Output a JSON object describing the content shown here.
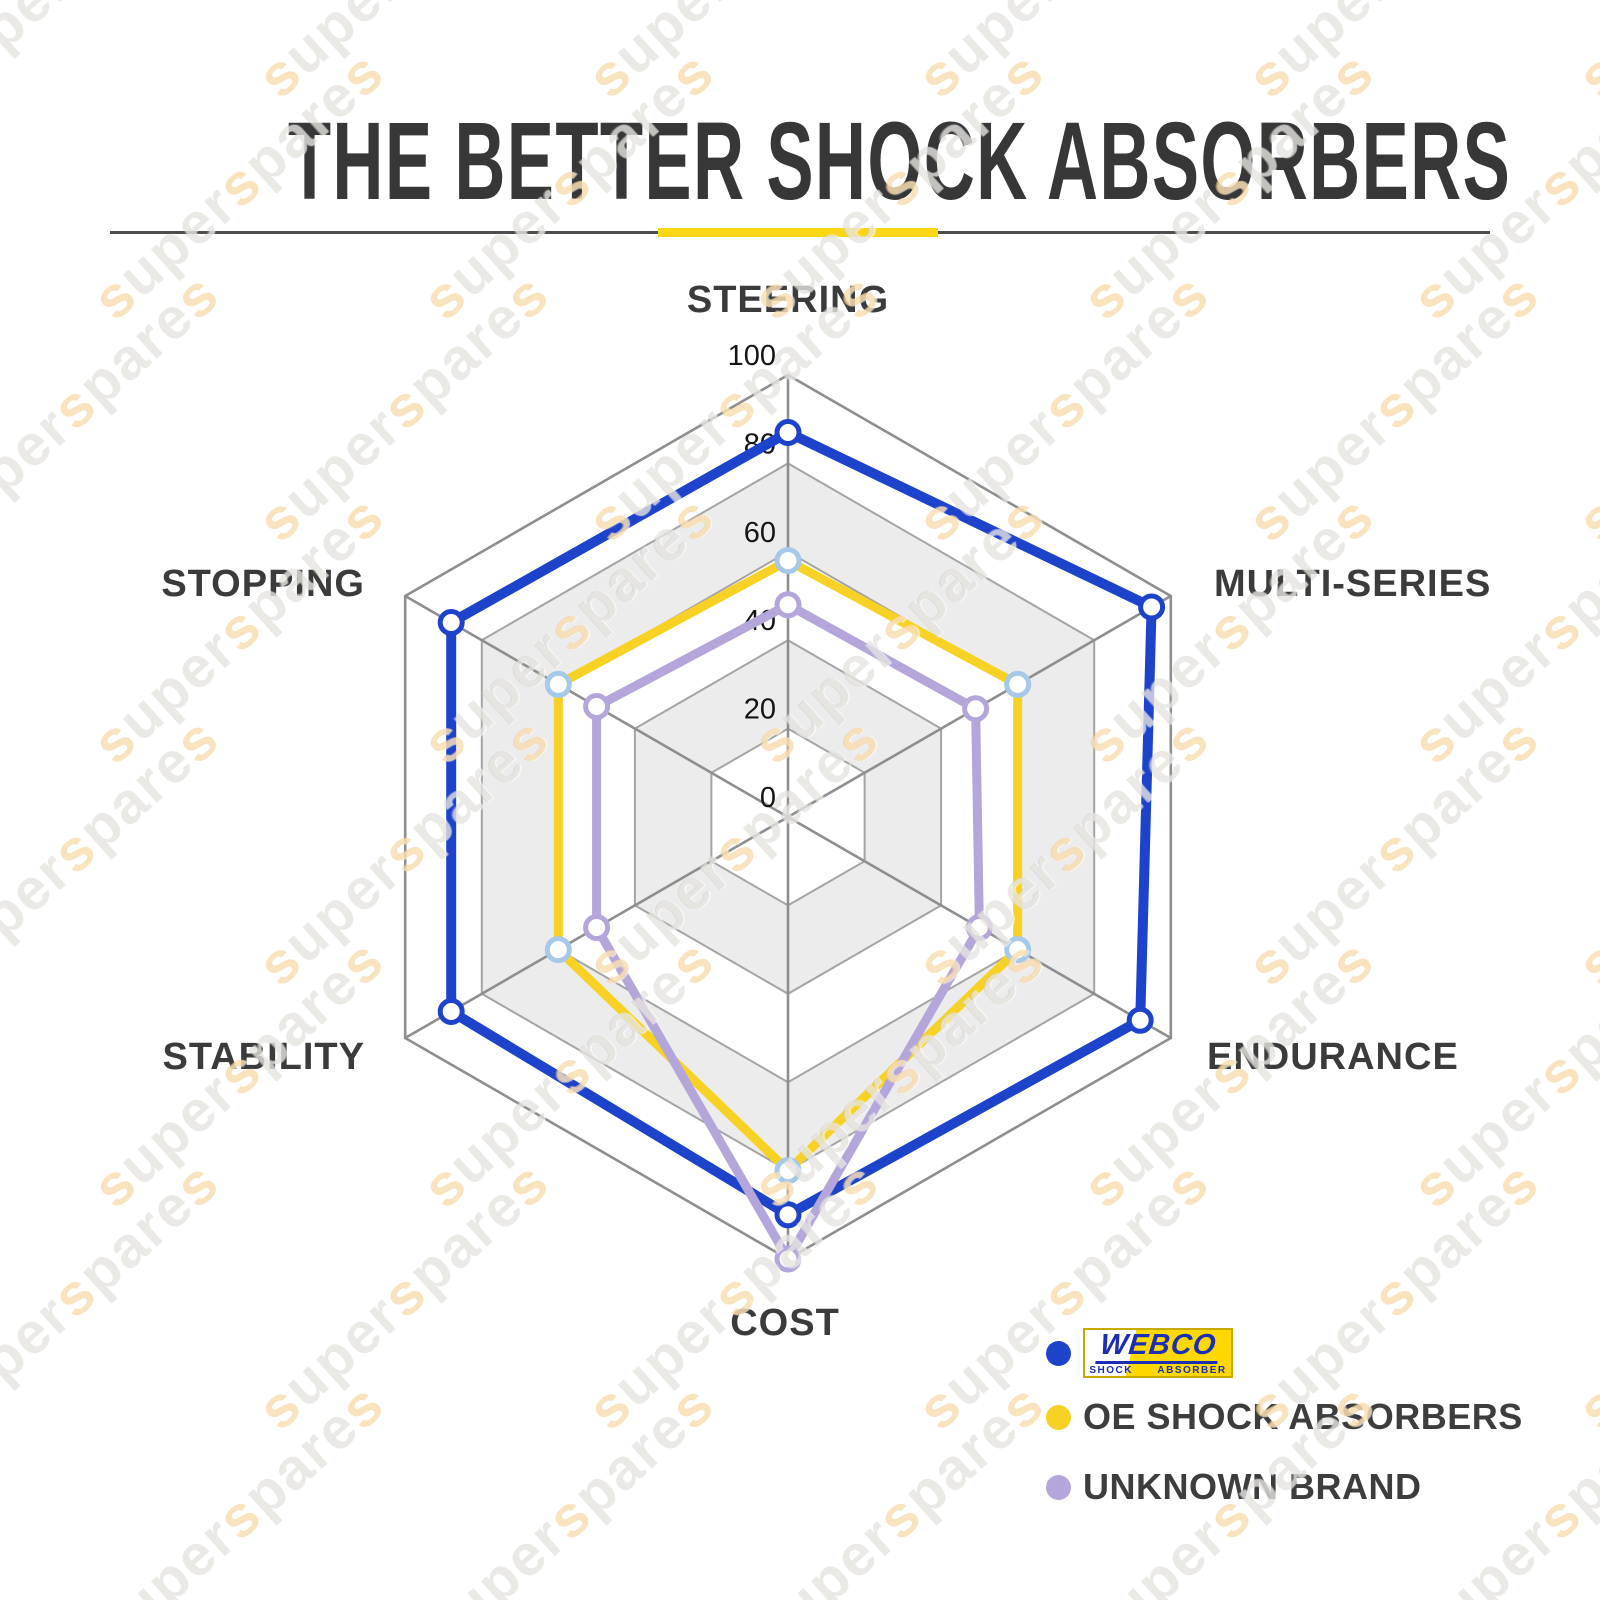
{
  "title": "THE BETTER SHOCK ABSORBERS",
  "watermark": {
    "text": "superspares"
  },
  "divider": {
    "line_color": "#4d4d4d",
    "accent_color": "#fdd615"
  },
  "chart_data": {
    "type": "radar",
    "categories": [
      "STEERING",
      "MULTI-SERIES",
      "ENDURANCE",
      "COST",
      "STABILITY",
      "STOPPING"
    ],
    "radial_ticks": [
      0,
      20,
      40,
      60,
      80,
      100
    ],
    "rmax": 100,
    "grid": {
      "shape": "hexagon",
      "band_fill": "#ffffff",
      "band_fill_alt": "#ececec",
      "line_color": "#8e8e8e",
      "ring_color": "#a4a4a4"
    },
    "series": [
      {
        "name": "WEBCO SHOCK ABSORBER",
        "color": "#1e43cb",
        "marker_stroke": "#1e43cb",
        "values": [
          87,
          95,
          92,
          90,
          88,
          88
        ]
      },
      {
        "name": "OE SHOCK ABSORBERS",
        "color": "#f7d123",
        "marker_stroke": "#a7c9e9",
        "values": [
          58,
          60,
          60,
          80,
          60,
          60
        ]
      },
      {
        "name": "UNKNOWN BRAND",
        "color": "#b4a6da",
        "marker_stroke": "#b4a6da",
        "values": [
          48,
          49,
          50,
          100,
          50,
          50
        ]
      }
    ],
    "legend_position": "bottom-right"
  },
  "legend": {
    "webco": {
      "wordmark": "WEBCO",
      "sub_left": "SHOCK",
      "sub_right": "ABSORBER",
      "dot_color": "#1e43cb"
    },
    "oe": {
      "label": "OE SHOCK ABSORBERS",
      "dot_color": "#f7d123"
    },
    "unknown": {
      "label": "UNKNOWN BRAND",
      "dot_color": "#b4a6da"
    }
  }
}
